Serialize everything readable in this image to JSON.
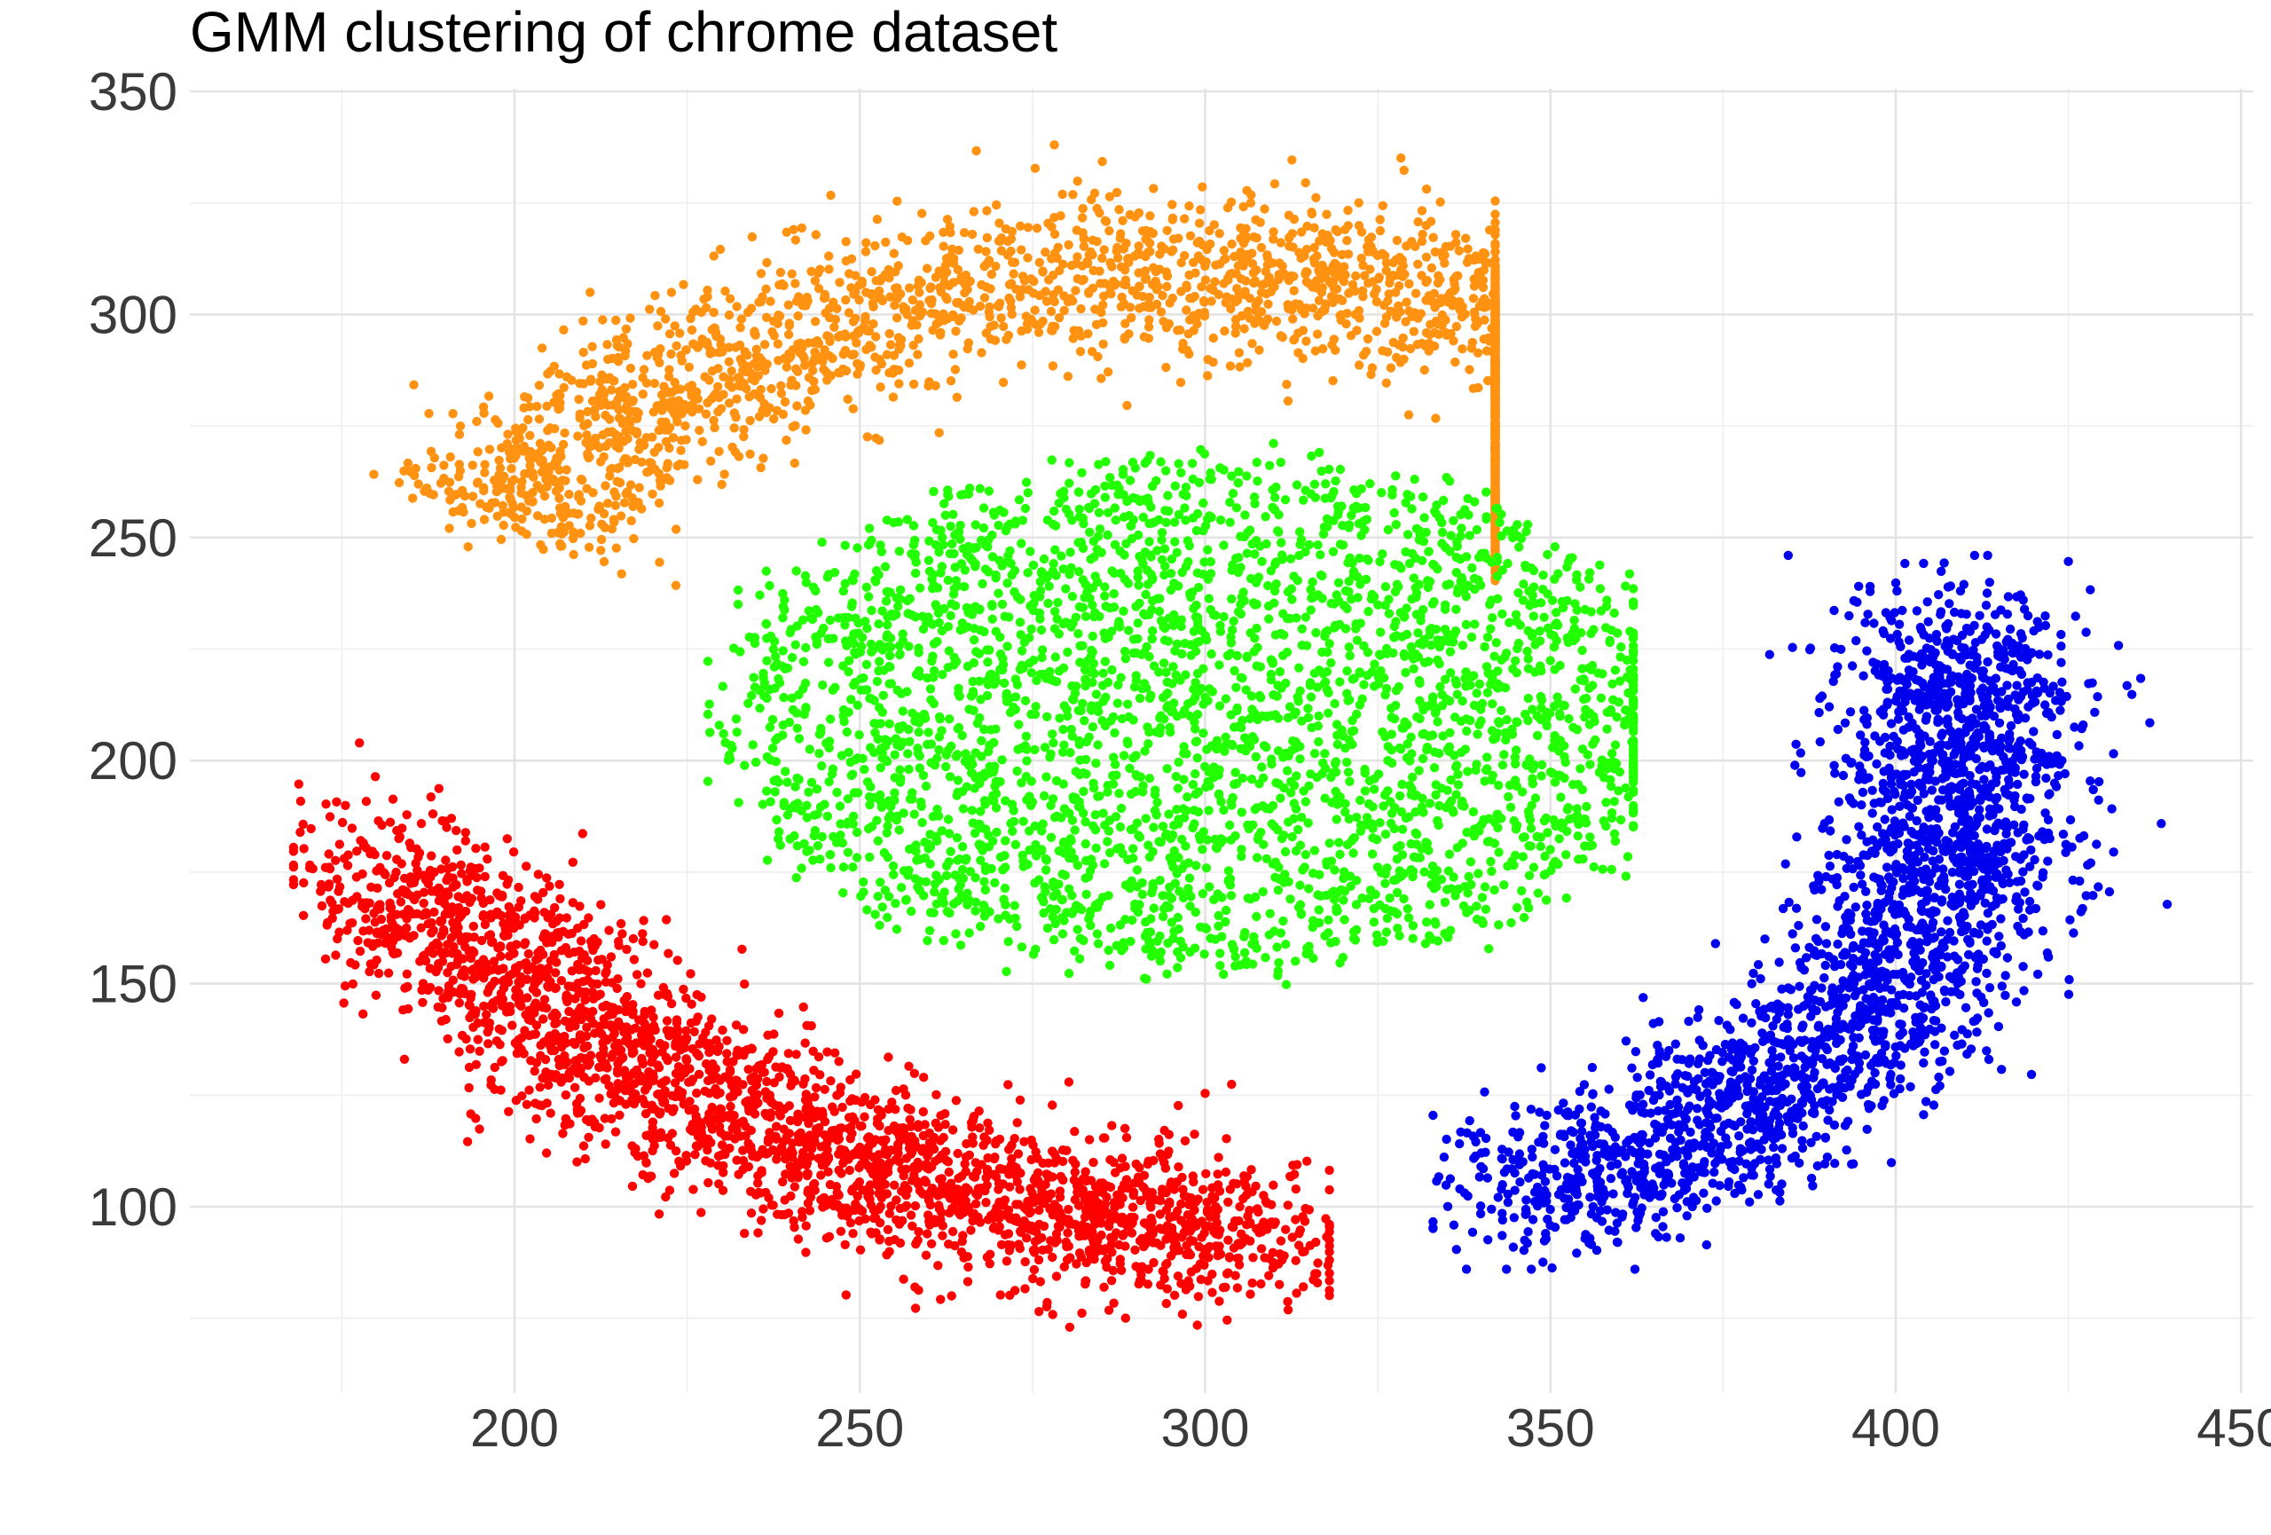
{
  "chart_data": {
    "type": "scatter",
    "title": "GMM clustering of chrome dataset",
    "xlabel": "",
    "ylabel": "",
    "xlim": [
      148,
      450
    ],
    "ylim": [
      60,
      350
    ],
    "x_ticks": [
      200,
      250,
      300,
      350,
      400,
      450
    ],
    "y_ticks": [
      100,
      150,
      200,
      250,
      300,
      350
    ],
    "x_tick_labels": [
      "200",
      "250",
      "300",
      "350",
      "400",
      "450"
    ],
    "y_tick_labels": [
      "100",
      "150",
      "200",
      "250",
      "300",
      "350"
    ],
    "grid": true,
    "legend": "none",
    "points_per_cluster_approx": 2500,
    "clusters": [
      {
        "color": "#FF9211",
        "shape": "arc",
        "center_x": 297,
        "center_y": 195,
        "radius_x": 115,
        "radius_y": 115,
        "angle_from_deg": 150,
        "angle_to_deg": 28,
        "spread": 9,
        "x_range": [
          174,
          342
        ],
        "y_range": [
          222,
          338
        ],
        "n": 2600
      },
      {
        "color": "#22FF00",
        "shape": "ellipse",
        "center_x": 300,
        "center_y": 210,
        "radius_x": 72,
        "radius_y": 58,
        "x_range": [
          228,
          362
        ],
        "y_range": [
          138,
          276
        ],
        "n": 3200
      },
      {
        "color": "#FF0000",
        "shape": "band",
        "path": [
          [
            178,
            178
          ],
          [
            195,
            160
          ],
          [
            215,
            132
          ],
          [
            240,
            114
          ],
          [
            265,
            103
          ],
          [
            290,
            97
          ],
          [
            310,
            93
          ]
        ],
        "spread": 9,
        "x_range": [
          168,
          318
        ],
        "y_range": [
          73,
          205
        ],
        "n": 2600
      },
      {
        "color": "#0000EE",
        "shape": "band",
        "path": [
          [
            345,
            104
          ],
          [
            365,
            112
          ],
          [
            385,
            128
          ],
          [
            400,
            150
          ],
          [
            408,
            180
          ],
          [
            410,
            215
          ],
          [
            408,
            230
          ]
        ],
        "spread": 9,
        "x_range": [
          333,
          440
        ],
        "y_range": [
          86,
          246
        ],
        "n": 2500
      }
    ]
  }
}
